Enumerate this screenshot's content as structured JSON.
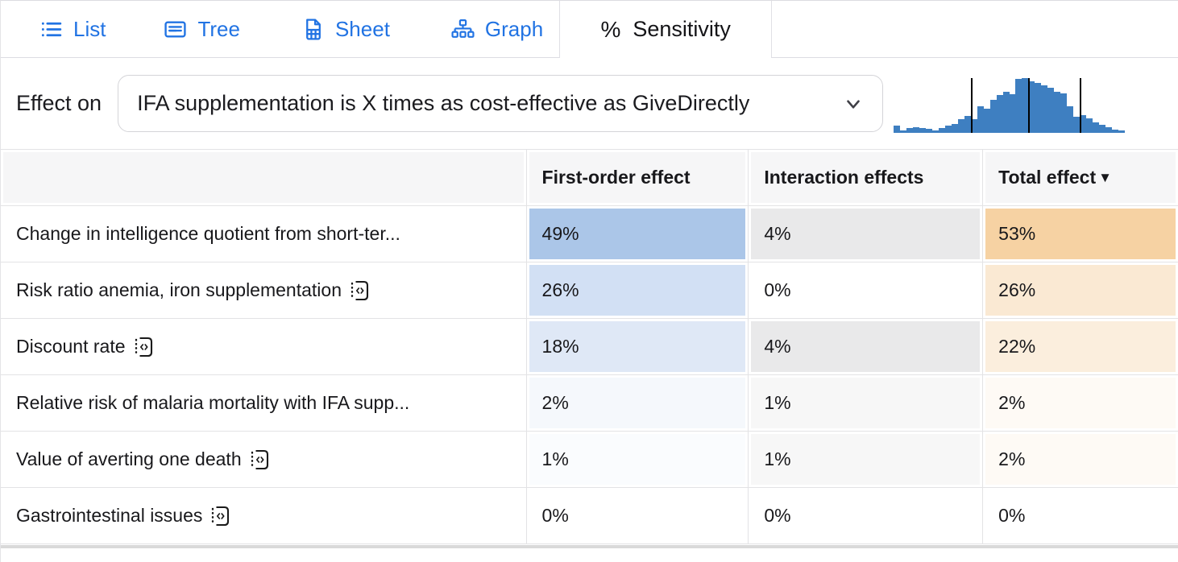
{
  "tabs": [
    {
      "label": "List",
      "active": false
    },
    {
      "label": "Tree",
      "active": false
    },
    {
      "label": "Sheet",
      "active": false
    },
    {
      "label": "Graph",
      "active": false
    },
    {
      "label": "Sensitivity",
      "active": true,
      "icon_glyph": "%"
    }
  ],
  "effect_on": {
    "label": "Effect on",
    "selected_option": "IFA supplementation is X times as cost-effective as GiveDirectly"
  },
  "chart_data": {
    "type": "bar",
    "subtype": "histogram-sparkline",
    "values": [
      0.13,
      0.04,
      0.08,
      0.09,
      0.08,
      0.06,
      0.04,
      0.08,
      0.13,
      0.16,
      0.25,
      0.3,
      0.24,
      0.48,
      0.44,
      0.6,
      0.68,
      0.75,
      0.7,
      0.98,
      1.0,
      0.93,
      0.9,
      0.86,
      0.81,
      0.75,
      0.71,
      0.48,
      0.29,
      0.31,
      0.26,
      0.19,
      0.14,
      0.09,
      0.05,
      0.03
    ],
    "marker_positions": [
      0.338,
      0.586,
      0.808
    ],
    "bar_color": "#3e7fc1",
    "marker_color": "#000000",
    "title": "",
    "xlabel": "",
    "ylabel": "",
    "axes_visible": false
  },
  "table": {
    "headers": {
      "label": "",
      "first_order": "First-order effect",
      "interaction": "Interaction effects",
      "total": "Total effect",
      "sort_indicator": "▼"
    },
    "rows": [
      {
        "label": "Change in intelligence quotient from short-ter...",
        "has_node_icon": false,
        "first_order": "49%",
        "interaction": "4%",
        "total": "53%",
        "colors": {
          "first_order": "#abc6e8",
          "interaction": "#e9e9ea",
          "total": "#f6d2a3"
        }
      },
      {
        "label": "Risk ratio anemia, iron supplementation",
        "has_node_icon": true,
        "first_order": "26%",
        "interaction": "0%",
        "total": "26%",
        "colors": {
          "first_order": "#d2e0f4",
          "interaction": "#ffffff",
          "total": "#fae9d3"
        }
      },
      {
        "label": "Discount rate",
        "has_node_icon": true,
        "first_order": "18%",
        "interaction": "4%",
        "total": "22%",
        "colors": {
          "first_order": "#dfe8f6",
          "interaction": "#e9e9ea",
          "total": "#fbeedd"
        }
      },
      {
        "label": "Relative risk of malaria mortality with IFA supp...",
        "has_node_icon": false,
        "first_order": "2%",
        "interaction": "1%",
        "total": "2%",
        "colors": {
          "first_order": "#f5f8fc",
          "interaction": "#f7f7f7",
          "total": "#fefaf5"
        }
      },
      {
        "label": "Value of averting one death",
        "has_node_icon": true,
        "first_order": "1%",
        "interaction": "1%",
        "total": "2%",
        "colors": {
          "first_order": "#fafcfe",
          "interaction": "#f7f7f7",
          "total": "#fefaf5"
        }
      },
      {
        "label": "Gastrointestinal issues",
        "has_node_icon": true,
        "first_order": "0%",
        "interaction": "0%",
        "total": "0%",
        "colors": {
          "first_order": "#ffffff",
          "interaction": "#ffffff",
          "total": "#ffffff"
        }
      }
    ]
  },
  "colors": {
    "accent_blue": "#2173e3",
    "histogram_bar": "#3e7fc1",
    "header_bg": "#f6f6f7",
    "table_border": "#e3e3e5",
    "text": "#18181b"
  }
}
